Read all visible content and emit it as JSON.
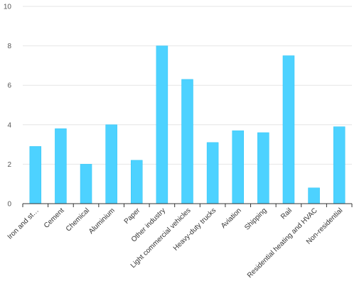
{
  "chart_data": {
    "type": "bar",
    "categories": [
      "Iron and st…",
      "Cement",
      "Chemical",
      "Aluminium",
      "Paper",
      "Other industry",
      "Light commercial vehicles",
      "Heavy-duty trucks",
      "Aviation",
      "Shipping",
      "Rail",
      "Residential heating and HVAC",
      "Non-residential"
    ],
    "values": [
      2.9,
      3.8,
      2.0,
      4.0,
      2.2,
      8.0,
      6.3,
      3.1,
      3.7,
      3.6,
      7.5,
      0.8,
      3.9
    ],
    "yticks": [
      "0",
      "2",
      "4",
      "6",
      "8",
      "10"
    ],
    "ylim": [
      0,
      10
    ],
    "grid": true,
    "bar_color": "#4dd2ff",
    "title": "",
    "xlabel": "",
    "ylabel": ""
  }
}
